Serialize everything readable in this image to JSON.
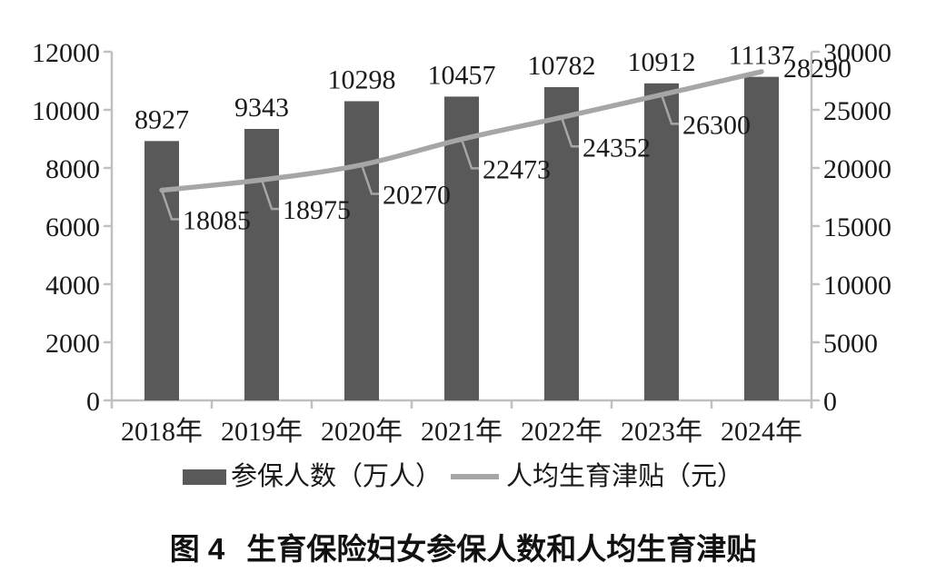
{
  "legend": {
    "bar_label": "参保人数（万人）",
    "line_label": "人均生育津贴（元）"
  },
  "caption": {
    "number": "图 4",
    "title": "生育保险妇女参保人数和人均生育津贴"
  },
  "chart_data": {
    "type": "bar",
    "combo": "bar+line dual axis",
    "title": "图 4 生育保险妇女参保人数和人均生育津贴",
    "categories": [
      "2018年",
      "2019年",
      "2020年",
      "2021年",
      "2022年",
      "2023年",
      "2024年"
    ],
    "series": [
      {
        "name": "参保人数（万人）",
        "type": "bar",
        "axis": "left",
        "values": [
          8927,
          9343,
          10298,
          10457,
          10782,
          10912,
          11137
        ]
      },
      {
        "name": "人均生育津贴（元）",
        "type": "line",
        "axis": "right",
        "values": [
          18085,
          18975,
          20270,
          22473,
          24352,
          26300,
          28290
        ]
      }
    ],
    "left_axis": {
      "min": 0,
      "max": 12000,
      "step": 2000,
      "ticks": [
        "0",
        "2000",
        "4000",
        "6000",
        "8000",
        "10000",
        "12000"
      ]
    },
    "right_axis": {
      "min": 0,
      "max": 30000,
      "step": 5000,
      "ticks": [
        "0",
        "5000",
        "10000",
        "15000",
        "20000",
        "25000",
        "30000"
      ]
    },
    "grid": false,
    "data_labels": true,
    "legend_position": "bottom",
    "colors": {
      "bar": "#595959",
      "line": "#a6a6a6",
      "axis": "#c0c0c0",
      "text": "#1a1a1a",
      "background": "#ffffff"
    }
  }
}
